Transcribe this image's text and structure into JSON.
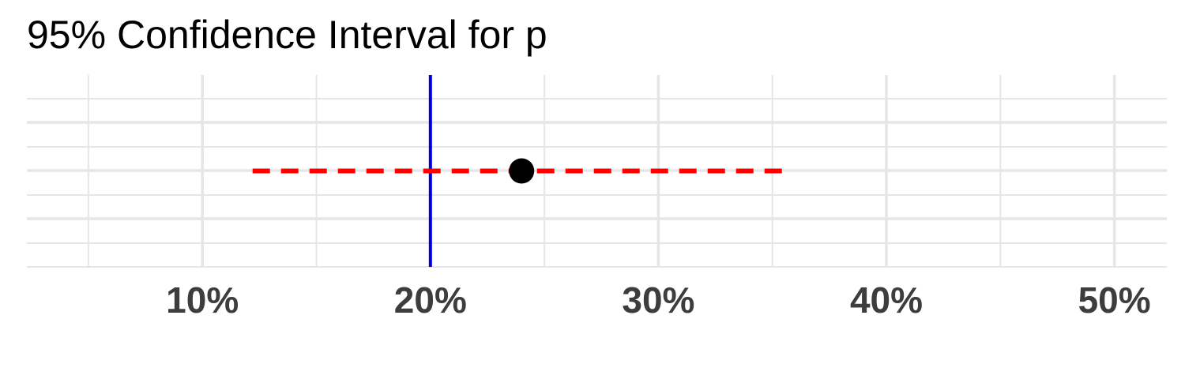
{
  "chart_data": {
    "type": "scatter",
    "title": "95% Confidence Interval for p",
    "xlabel": "",
    "ylabel": "",
    "x_unit": "percent",
    "xlim": [
      2.3,
      52.3
    ],
    "x_ticks": [
      10,
      20,
      30,
      40,
      50
    ],
    "x_tick_labels": [
      "10%",
      "20%",
      "30%",
      "40%",
      "50%"
    ],
    "x_minor_gridlines": [
      5,
      15,
      25,
      35,
      45
    ],
    "grid": true,
    "point_estimate": 24,
    "interval": {
      "lower": 12.2,
      "upper": 35.8
    },
    "reference_line": 20,
    "colors": {
      "interval": "#ff0000",
      "reference_line": "#0000dd",
      "point": "#000000",
      "grid": "#e6e6e6",
      "tick_text": "#3d3d3d"
    }
  }
}
